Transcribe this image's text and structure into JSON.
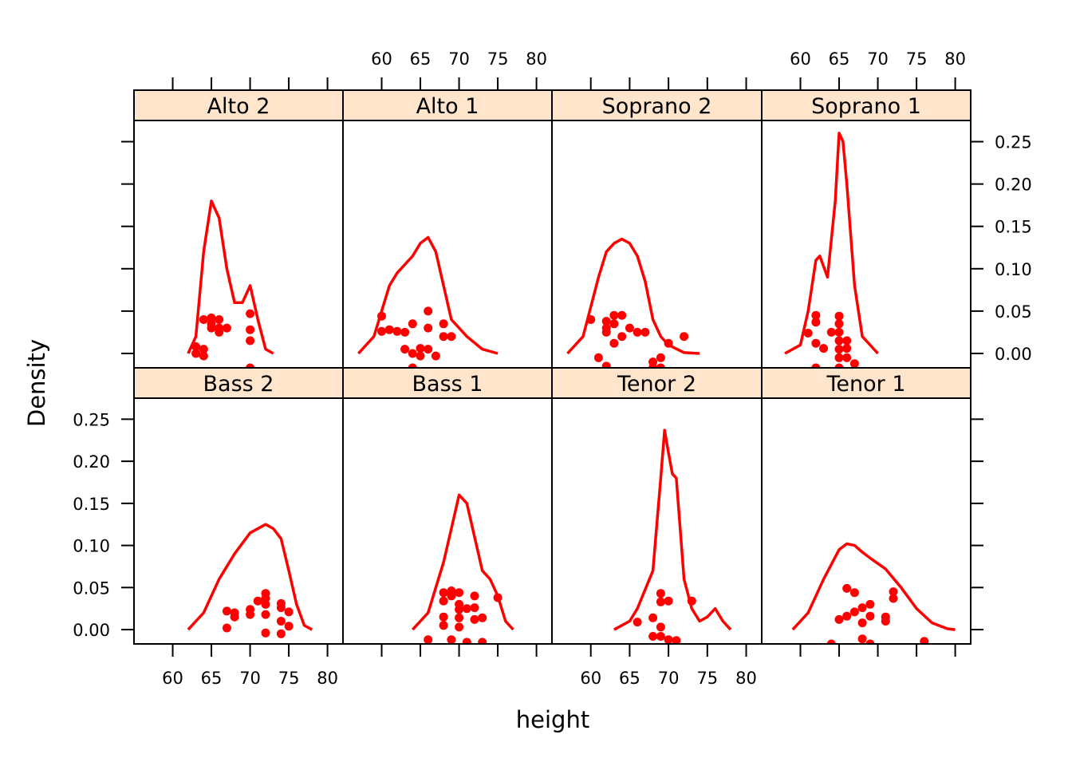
{
  "chart_data": {
    "type": "density",
    "xlabel": "height",
    "ylabel": "Density",
    "xlim": [
      55,
      82
    ],
    "ylim": [
      -0.017,
      0.275
    ],
    "x_ticks": [
      60,
      65,
      70,
      75,
      80
    ],
    "y_ticks": [
      0.0,
      0.05,
      0.1,
      0.15,
      0.2,
      0.25
    ],
    "y_tick_labels": [
      "0.00",
      "0.05",
      "0.10",
      "0.15",
      "0.20",
      "0.25"
    ],
    "line_color": "#ff0000",
    "point_color": "#ff0000",
    "strip_color": "#ffe5cc",
    "panels": [
      {
        "label": "Alto 2",
        "points": [
          [
            64,
            0.04
          ],
          [
            65,
            0.042
          ],
          [
            66,
            0.04
          ],
          [
            65,
            0.035
          ],
          [
            66,
            0.03
          ],
          [
            67,
            0.03
          ],
          [
            65,
            0.03
          ],
          [
            66,
            0.025
          ],
          [
            63,
            0.008
          ],
          [
            64,
            0.005
          ],
          [
            63,
            0.0
          ],
          [
            64,
            -0.003
          ],
          [
            70,
            0.047
          ],
          [
            70,
            0.028
          ],
          [
            70,
            0.015
          ],
          [
            70,
            -0.017
          ]
        ],
        "density": [
          [
            62,
            0.0
          ],
          [
            63,
            0.02
          ],
          [
            64,
            0.12
          ],
          [
            65,
            0.18
          ],
          [
            66,
            0.16
          ],
          [
            67,
            0.1
          ],
          [
            68,
            0.06
          ],
          [
            69,
            0.06
          ],
          [
            70,
            0.08
          ],
          [
            71,
            0.04
          ],
          [
            72,
            0.005
          ],
          [
            73,
            0.0
          ]
        ]
      },
      {
        "label": "Alto 1",
        "points": [
          [
            60,
            0.044
          ],
          [
            60,
            0.026
          ],
          [
            61,
            0.028
          ],
          [
            62,
            0.026
          ],
          [
            63,
            0.025
          ],
          [
            63,
            0.005
          ],
          [
            64,
            0.035
          ],
          [
            64,
            0.0
          ],
          [
            65,
            0.006
          ],
          [
            65,
            -0.003
          ],
          [
            66,
            0.05
          ],
          [
            66,
            0.03
          ],
          [
            66,
            0.005
          ],
          [
            67,
            -0.003
          ],
          [
            68,
            0.035
          ],
          [
            68,
            0.02
          ],
          [
            69,
            0.02
          ],
          [
            64,
            -0.017
          ]
        ],
        "density": [
          [
            57,
            0.0
          ],
          [
            59,
            0.02
          ],
          [
            61,
            0.08
          ],
          [
            62,
            0.095
          ],
          [
            63,
            0.105
          ],
          [
            64,
            0.115
          ],
          [
            65,
            0.13
          ],
          [
            66,
            0.137
          ],
          [
            67,
            0.12
          ],
          [
            68,
            0.08
          ],
          [
            69,
            0.04
          ],
          [
            71,
            0.02
          ],
          [
            73,
            0.005
          ],
          [
            75,
            0.0
          ]
        ]
      },
      {
        "label": "Soprano 2",
        "points": [
          [
            60,
            0.04
          ],
          [
            62,
            0.038
          ],
          [
            62,
            0.03
          ],
          [
            62,
            0.025
          ],
          [
            63,
            0.045
          ],
          [
            63,
            0.035
          ],
          [
            63,
            0.012
          ],
          [
            64,
            0.045
          ],
          [
            64,
            0.02
          ],
          [
            65,
            0.03
          ],
          [
            66,
            0.025
          ],
          [
            67,
            0.025
          ],
          [
            68,
            -0.01
          ],
          [
            68,
            -0.017
          ],
          [
            69,
            -0.005
          ],
          [
            69,
            -0.017
          ],
          [
            70,
            0.012
          ],
          [
            72,
            0.02
          ],
          [
            61,
            -0.005
          ],
          [
            62,
            -0.015
          ]
        ],
        "density": [
          [
            57,
            0.0
          ],
          [
            59,
            0.02
          ],
          [
            61,
            0.09
          ],
          [
            62,
            0.12
          ],
          [
            63,
            0.13
          ],
          [
            64,
            0.135
          ],
          [
            65,
            0.13
          ],
          [
            66,
            0.115
          ],
          [
            67,
            0.085
          ],
          [
            68,
            0.04
          ],
          [
            69,
            0.02
          ],
          [
            70,
            0.01
          ],
          [
            72,
            0.001
          ],
          [
            74,
            0.0
          ]
        ]
      },
      {
        "label": "Soprano 1",
        "points": [
          [
            61,
            0.024
          ],
          [
            62,
            0.045
          ],
          [
            62,
            0.037
          ],
          [
            62,
            0.012
          ],
          [
            62,
            -0.017
          ],
          [
            63,
            0.006
          ],
          [
            64,
            0.025
          ],
          [
            65,
            0.044
          ],
          [
            65,
            0.035
          ],
          [
            65,
            0.025
          ],
          [
            65,
            0.015
          ],
          [
            65,
            0.005
          ],
          [
            65,
            -0.005
          ],
          [
            65,
            -0.017
          ],
          [
            66,
            0.015
          ],
          [
            66,
            0.006
          ],
          [
            66,
            -0.005
          ],
          [
            67,
            -0.012
          ]
        ],
        "density": [
          [
            58,
            0.0
          ],
          [
            60,
            0.01
          ],
          [
            61,
            0.05
          ],
          [
            62,
            0.11
          ],
          [
            62.5,
            0.115
          ],
          [
            63.5,
            0.09
          ],
          [
            64.5,
            0.18
          ],
          [
            65,
            0.26
          ],
          [
            65.5,
            0.25
          ],
          [
            66,
            0.2
          ],
          [
            67,
            0.08
          ],
          [
            68,
            0.02
          ],
          [
            70,
            0.0
          ]
        ]
      },
      {
        "label": "Bass 2",
        "points": [
          [
            67,
            0.022
          ],
          [
            68,
            0.02
          ],
          [
            68,
            0.015
          ],
          [
            67,
            0.002
          ],
          [
            70,
            0.024
          ],
          [
            70,
            0.018
          ],
          [
            71,
            0.034
          ],
          [
            72,
            0.037
          ],
          [
            72,
            0.043
          ],
          [
            72,
            0.03
          ],
          [
            72,
            0.018
          ],
          [
            72,
            -0.004
          ],
          [
            74,
            0.031
          ],
          [
            74,
            0.026
          ],
          [
            74,
            0.01
          ],
          [
            74,
            -0.005
          ],
          [
            75,
            0.021
          ],
          [
            75,
            0.004
          ]
        ],
        "density": [
          [
            62,
            0.0
          ],
          [
            64,
            0.02
          ],
          [
            66,
            0.06
          ],
          [
            68,
            0.09
          ],
          [
            70,
            0.115
          ],
          [
            72,
            0.125
          ],
          [
            73,
            0.12
          ],
          [
            74,
            0.108
          ],
          [
            75,
            0.07
          ],
          [
            76,
            0.03
          ],
          [
            77,
            0.005
          ],
          [
            78,
            0.0
          ]
        ]
      },
      {
        "label": "Bass 1",
        "points": [
          [
            68,
            0.044
          ],
          [
            68,
            0.034
          ],
          [
            68,
            0.015
          ],
          [
            68,
            0.005
          ],
          [
            69,
            0.046
          ],
          [
            69,
            0.04
          ],
          [
            69,
            -0.012
          ],
          [
            70,
            0.044
          ],
          [
            70,
            0.03
          ],
          [
            70,
            0.024
          ],
          [
            70,
            0.014
          ],
          [
            70,
            0.003
          ],
          [
            71,
            0.025
          ],
          [
            71,
            -0.015
          ],
          [
            72,
            0.04
          ],
          [
            72,
            0.026
          ],
          [
            72,
            0.012
          ],
          [
            73,
            0.014
          ],
          [
            73,
            -0.015
          ],
          [
            75,
            0.038
          ],
          [
            66,
            -0.012
          ]
        ],
        "density": [
          [
            64,
            0.0
          ],
          [
            66,
            0.02
          ],
          [
            68,
            0.08
          ],
          [
            69,
            0.12
          ],
          [
            70,
            0.16
          ],
          [
            71,
            0.15
          ],
          [
            72,
            0.11
          ],
          [
            73,
            0.07
          ],
          [
            74,
            0.06
          ],
          [
            75,
            0.04
          ],
          [
            76,
            0.01
          ],
          [
            77,
            0.0
          ]
        ]
      },
      {
        "label": "Tenor 2",
        "points": [
          [
            66,
            0.009
          ],
          [
            68,
            0.014
          ],
          [
            68,
            -0.008
          ],
          [
            69,
            0.043
          ],
          [
            69,
            0.033
          ],
          [
            69,
            0.003
          ],
          [
            69,
            -0.008
          ],
          [
            70,
            0.034
          ],
          [
            70,
            -0.012
          ],
          [
            71,
            -0.013
          ],
          [
            73,
            0.034
          ]
        ],
        "density": [
          [
            63,
            0.0
          ],
          [
            65,
            0.01
          ],
          [
            66,
            0.025
          ],
          [
            68,
            0.07
          ],
          [
            69,
            0.18
          ],
          [
            69.5,
            0.237
          ],
          [
            70,
            0.21
          ],
          [
            70.5,
            0.185
          ],
          [
            71,
            0.18
          ],
          [
            72,
            0.06
          ],
          [
            73,
            0.025
          ],
          [
            74,
            0.01
          ],
          [
            75,
            0.015
          ],
          [
            76,
            0.025
          ],
          [
            77,
            0.01
          ],
          [
            78,
            0.0
          ]
        ]
      },
      {
        "label": "Tenor 1",
        "points": [
          [
            65,
            0.012
          ],
          [
            66,
            0.049
          ],
          [
            66,
            0.016
          ],
          [
            67,
            0.044
          ],
          [
            67,
            0.021
          ],
          [
            68,
            0.026
          ],
          [
            68,
            0.008
          ],
          [
            68,
            -0.011
          ],
          [
            69,
            0.03
          ],
          [
            69,
            0.016
          ],
          [
            71,
            0.015
          ],
          [
            71,
            0.01
          ],
          [
            72,
            0.045
          ],
          [
            72,
            0.037
          ],
          [
            76,
            -0.014
          ],
          [
            64,
            -0.017
          ],
          [
            69,
            -0.017
          ]
        ],
        "density": [
          [
            59,
            0.0
          ],
          [
            61,
            0.02
          ],
          [
            63,
            0.06
          ],
          [
            65,
            0.095
          ],
          [
            66,
            0.102
          ],
          [
            67,
            0.1
          ],
          [
            68,
            0.092
          ],
          [
            69,
            0.085
          ],
          [
            71,
            0.072
          ],
          [
            73,
            0.05
          ],
          [
            75,
            0.025
          ],
          [
            77,
            0.008
          ],
          [
            79,
            0.001
          ],
          [
            80,
            0.0
          ]
        ]
      }
    ]
  }
}
